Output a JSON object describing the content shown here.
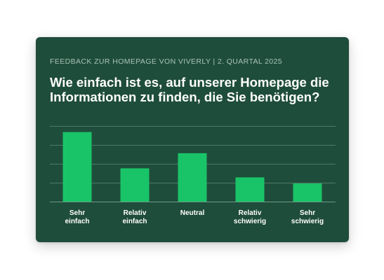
{
  "header": {
    "subtitle": "FEEDBACK ZUR HOMEPAGE VON VIVERLY | 2. QUARTAL 2025",
    "title": "Wie einfach ist es, auf unserer Homepage die Informationen zu finden, die Sie benötigen?"
  },
  "chart_data": {
    "type": "bar",
    "title": "Wie einfach ist es, auf unserer Homepage die Informationen zu finden, die Sie benötigen?",
    "subtitle": "FEEDBACK ZUR HOMEPAGE VON VIVERLY | 2. QUARTAL 2025",
    "categories": [
      [
        "Sehr",
        "einfach"
      ],
      [
        "Relativ",
        "einfach"
      ],
      [
        "Neutral"
      ],
      [
        "Relativ",
        "schwierig"
      ],
      [
        "Sehr",
        "schwierig"
      ]
    ],
    "values": [
      92,
      44,
      64,
      32,
      24
    ],
    "ylim": [
      0,
      100
    ],
    "grid": true,
    "bar_color": "#19c468",
    "background_color": "#1f4d3b",
    "grid_color": "#4e7a67",
    "label_color": "#ffffff",
    "subtitle_color": "#a9c2b6"
  }
}
